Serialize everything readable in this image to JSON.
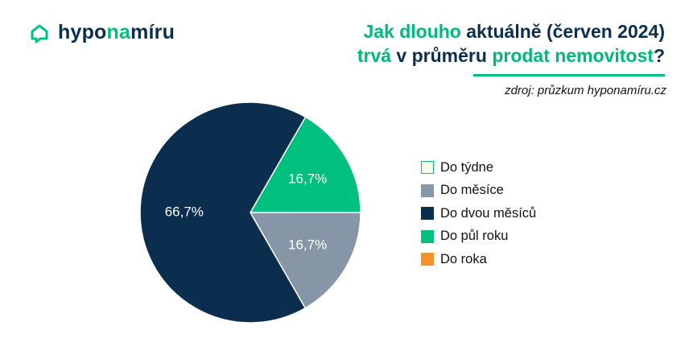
{
  "brand": {
    "name_part1": "hypo",
    "name_part2": "na",
    "name_part3": "míru"
  },
  "title": {
    "line1_a": "Jak dlouho",
    "line1_b": " aktuálně (červen 2024)",
    "line2_a": "trvá",
    "line2_b": " v průměru ",
    "line2_c": "prodat nemovitost",
    "line2_d": "?"
  },
  "source": "zdroj: průzkum hyponamíru.cz",
  "colors": {
    "navy": "#0b2e4f",
    "green": "#00c07f",
    "grey": "#8796a6",
    "orange": "#f5912a",
    "pale": "#f6fbea"
  },
  "chart_data": {
    "type": "pie",
    "title": "Jak dlouho aktuálně (červen 2024) trvá v průměru prodat nemovitost?",
    "categories": [
      "Do týdne",
      "Do měsíce",
      "Do dvou měsíců",
      "Do půl roku",
      "Do roka"
    ],
    "values": [
      0,
      16.7,
      66.7,
      16.7,
      0
    ],
    "labels": [
      "",
      "16,7%",
      "66,7%",
      "16,7%",
      ""
    ],
    "colors": [
      "#f6fbea",
      "#8796a6",
      "#0b2e4f",
      "#00c07f",
      "#f5912a"
    ],
    "legend_position": "right"
  }
}
